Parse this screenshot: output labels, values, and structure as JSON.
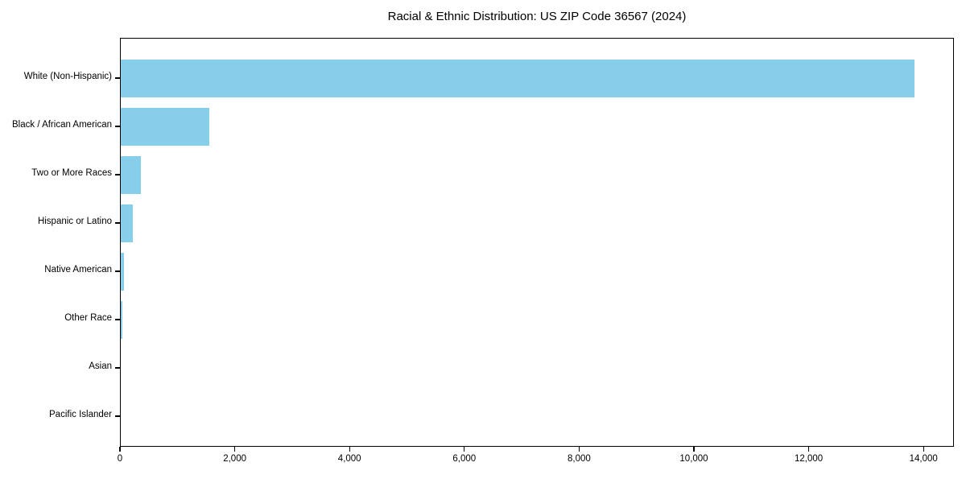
{
  "title": "Racial & Ethnic Distribution: US ZIP Code 36567 (2024)",
  "chart_data": {
    "type": "bar",
    "orientation": "horizontal",
    "title": "Racial & Ethnic Distribution: US ZIP Code 36567 (2024)",
    "categories": [
      "White (Non-Hispanic)",
      "Black / African American",
      "Two or More Races",
      "Hispanic or Latino",
      "Native American",
      "Other Race",
      "Asian",
      "Pacific Islander"
    ],
    "values": [
      13840,
      1560,
      365,
      220,
      75,
      40,
      0,
      0
    ],
    "xlabel": "",
    "ylabel": "",
    "xlim": [
      0,
      14530
    ],
    "x_ticks": [
      0,
      2000,
      4000,
      6000,
      8000,
      10000,
      12000,
      14000
    ],
    "x_tick_labels": [
      "0",
      "2,000",
      "4,000",
      "6,000",
      "8,000",
      "10,000",
      "12,000",
      "14,000"
    ],
    "bar_color": "#87CEEB",
    "background_color": "#ffffff",
    "axis_color": "#000000",
    "grid": false,
    "legend": false
  }
}
